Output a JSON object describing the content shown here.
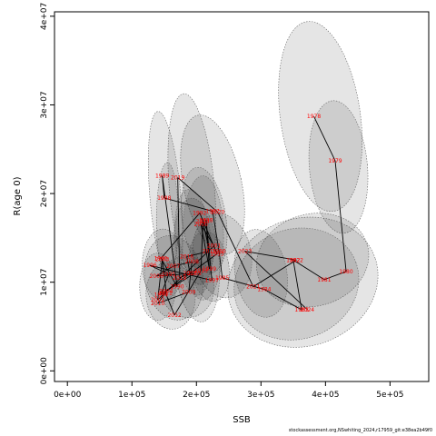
{
  "chart_data": {
    "type": "scatter",
    "xlabel": "SSB",
    "ylabel": "R(age 0)",
    "xlim": [
      -20000,
      560000
    ],
    "ylim": [
      -1200000,
      40500000
    ],
    "x_ticks": [
      0,
      100000,
      200000,
      300000,
      400000,
      500000
    ],
    "x_tick_labels": [
      "0e+00",
      "1e+05",
      "2e+05",
      "3e+05",
      "4e+05",
      "5e+05"
    ],
    "y_ticks": [
      0,
      10000000,
      20000000,
      30000000,
      40000000
    ],
    "y_tick_labels": [
      "0e+00",
      "1e+07",
      "2e+07",
      "3e+07",
      "4e+07"
    ],
    "points": [
      {
        "year": "1978",
        "x": 382000,
        "y": 28700000
      },
      {
        "year": "1979",
        "x": 415000,
        "y": 23700000
      },
      {
        "year": "1980",
        "x": 432000,
        "y": 11200000
      },
      {
        "year": "1981",
        "x": 398000,
        "y": 10300000
      },
      {
        "year": "1982",
        "x": 350000,
        "y": 12500000
      },
      {
        "year": "1983",
        "x": 363000,
        "y": 6900000
      },
      {
        "year": "1984",
        "x": 305000,
        "y": 9200000
      },
      {
        "year": "1985",
        "x": 240000,
        "y": 10500000
      },
      {
        "year": "1986",
        "x": 235000,
        "y": 13500000
      },
      {
        "year": "1987",
        "x": 225000,
        "y": 18000000
      },
      {
        "year": "1988",
        "x": 150000,
        "y": 19500000
      },
      {
        "year": "1989",
        "x": 147000,
        "y": 22000000
      },
      {
        "year": "1990",
        "x": 170000,
        "y": 9500000
      },
      {
        "year": "1991",
        "x": 145000,
        "y": 12700000
      },
      {
        "year": "1992",
        "x": 205000,
        "y": 17800000
      },
      {
        "year": "1993",
        "x": 232000,
        "y": 13200000
      },
      {
        "year": "1994",
        "x": 145000,
        "y": 8600000
      },
      {
        "year": "1995",
        "x": 157000,
        "y": 10900000
      },
      {
        "year": "1996",
        "x": 128000,
        "y": 11900000
      },
      {
        "year": "1997",
        "x": 224000,
        "y": 10200000
      },
      {
        "year": "1998",
        "x": 215000,
        "y": 17000000
      },
      {
        "year": "1999",
        "x": 220000,
        "y": 11500000
      },
      {
        "year": "2000",
        "x": 207000,
        "y": 16500000
      },
      {
        "year": "2001",
        "x": 227000,
        "y": 14100000
      },
      {
        "year": "2002",
        "x": 140000,
        "y": 8000000
      },
      {
        "year": "2003",
        "x": 147000,
        "y": 12600000
      },
      {
        "year": "2004",
        "x": 153000,
        "y": 9000000
      },
      {
        "year": "2005",
        "x": 197000,
        "y": 11000000
      },
      {
        "year": "2006",
        "x": 138000,
        "y": 10700000
      },
      {
        "year": "2007",
        "x": 164000,
        "y": 11800000
      },
      {
        "year": "2008",
        "x": 193000,
        "y": 12300000
      },
      {
        "year": "2009",
        "x": 188000,
        "y": 8900000
      },
      {
        "year": "2010",
        "x": 140000,
        "y": 7600000
      },
      {
        "year": "2011",
        "x": 152000,
        "y": 8800000
      },
      {
        "year": "2012",
        "x": 166000,
        "y": 6300000
      },
      {
        "year": "2013",
        "x": 207000,
        "y": 11300000
      },
      {
        "year": "2014",
        "x": 210000,
        "y": 16900000
      },
      {
        "year": "2015",
        "x": 220000,
        "y": 13500000
      },
      {
        "year": "2016",
        "x": 185000,
        "y": 12900000
      },
      {
        "year": "2017",
        "x": 190000,
        "y": 11000000
      },
      {
        "year": "2018",
        "x": 174000,
        "y": 10500000
      },
      {
        "year": "2019",
        "x": 171000,
        "y": 21800000
      },
      {
        "year": "2020",
        "x": 233000,
        "y": 17900000
      },
      {
        "year": "2021",
        "x": 288000,
        "y": 9500000
      },
      {
        "year": "2022",
        "x": 355000,
        "y": 12500000
      },
      {
        "year": "2023",
        "x": 275000,
        "y": 13500000
      },
      {
        "year": "2024",
        "x": 372000,
        "y": 6900000
      }
    ],
    "path_order": [
      "1978",
      "1979",
      "1980",
      "1981",
      "1982",
      "1983",
      "1984",
      "1985",
      "1986",
      "1987",
      "1988",
      "1989",
      "1990",
      "1991",
      "1992",
      "1993",
      "1994",
      "1995",
      "1996",
      "1997",
      "1998",
      "1999",
      "2000",
      "2001",
      "2002",
      "2003",
      "2004",
      "2005",
      "2006",
      "2007",
      "2008",
      "2009",
      "2010",
      "2011",
      "2012",
      "2013",
      "2014",
      "2015",
      "2016",
      "2017",
      "2018",
      "2019",
      "2020",
      "2021",
      "2022",
      "2023",
      "2024"
    ],
    "uncertainty_ellipses": [
      {
        "x": 392000,
        "y": 28700000,
        "rx": 62000,
        "ry": 10800000,
        "angle": -8
      },
      {
        "x": 420000,
        "y": 23000000,
        "rx": 45000,
        "ry": 7500000,
        "angle": -5
      },
      {
        "x": 365000,
        "y": 10000000,
        "rx": 118000,
        "ry": 7200000,
        "angle": -18
      },
      {
        "x": 380000,
        "y": 12500000,
        "rx": 88000,
        "ry": 5200000,
        "angle": -15
      },
      {
        "x": 355000,
        "y": 9800000,
        "rx": 98000,
        "ry": 6200000,
        "angle": -20
      },
      {
        "x": 300000,
        "y": 11000000,
        "rx": 40000,
        "ry": 5000000,
        "angle": -10
      },
      {
        "x": 225000,
        "y": 21000000,
        "rx": 45000,
        "ry": 8000000,
        "angle": -12
      },
      {
        "x": 193000,
        "y": 20500000,
        "rx": 35000,
        "ry": 10800000,
        "angle": -5
      },
      {
        "x": 152000,
        "y": 19500000,
        "rx": 24000,
        "ry": 9800000,
        "angle": -5
      },
      {
        "x": 155000,
        "y": 17000000,
        "rx": 17000,
        "ry": 6500000,
        "angle": 0
      },
      {
        "x": 212000,
        "y": 17000000,
        "rx": 34000,
        "ry": 6000000,
        "angle": -8
      },
      {
        "x": 240000,
        "y": 13000000,
        "rx": 45000,
        "ry": 4800000,
        "angle": -10
      },
      {
        "x": 200000,
        "y": 12500000,
        "rx": 35000,
        "ry": 7000000,
        "angle": -5
      },
      {
        "x": 165000,
        "y": 10500000,
        "rx": 45000,
        "ry": 4800000,
        "angle": -10
      },
      {
        "x": 148000,
        "y": 12000000,
        "rx": 32000,
        "ry": 4000000,
        "angle": 0
      },
      {
        "x": 185000,
        "y": 9500000,
        "rx": 42000,
        "ry": 3500000,
        "angle": -10
      },
      {
        "x": 160000,
        "y": 8500000,
        "rx": 38000,
        "ry": 3800000,
        "angle": -5
      },
      {
        "x": 220000,
        "y": 11800000,
        "rx": 30000,
        "ry": 4000000,
        "angle": -10
      },
      {
        "x": 140000,
        "y": 9500000,
        "rx": 28000,
        "ry": 3800000,
        "angle": 0
      },
      {
        "x": 195000,
        "y": 14500000,
        "rx": 28000,
        "ry": 6000000,
        "angle": -5
      },
      {
        "x": 210000,
        "y": 15000000,
        "rx": 32000,
        "ry": 7000000,
        "angle": 0
      }
    ]
  },
  "footer": "stockassessment.org,NSwhiting_2024,r17959_git:e38ea2b49f0"
}
